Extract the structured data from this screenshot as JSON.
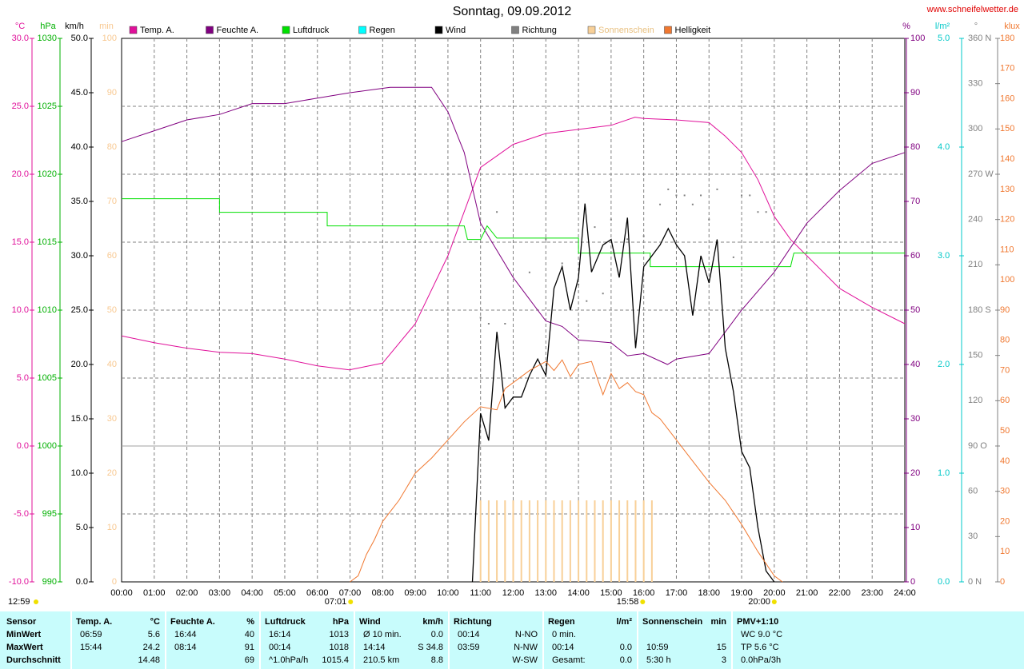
{
  "chart_data": {
    "type": "line",
    "title": "Sonntag, 09.09.2012",
    "source": "www.schneifelwetter.de",
    "grid": true,
    "corner_time": "12:59",
    "xlim": [
      0,
      24
    ],
    "xticks": [
      {
        "value": 0,
        "label": "00:00"
      },
      {
        "value": 1,
        "label": "01:00"
      },
      {
        "value": 2,
        "label": "02:00"
      },
      {
        "value": 3,
        "label": "03:00"
      },
      {
        "value": 4,
        "label": "04:00"
      },
      {
        "value": 5,
        "label": "05:00"
      },
      {
        "value": 6,
        "label": "06:00"
      },
      {
        "value": 7,
        "label": "07:00"
      },
      {
        "value": 8,
        "label": "08:00"
      },
      {
        "value": 9,
        "label": "09:00"
      },
      {
        "value": 10,
        "label": "10:00"
      },
      {
        "value": 11,
        "label": "11:00"
      },
      {
        "value": 12,
        "label": "12:00"
      },
      {
        "value": 13,
        "label": "13:00"
      },
      {
        "value": 14,
        "label": "14:00"
      },
      {
        "value": 15,
        "label": "15:00"
      },
      {
        "value": 16,
        "label": "16:00"
      },
      {
        "value": 17,
        "label": "17:00"
      },
      {
        "value": 18,
        "label": "18:00"
      },
      {
        "value": 19,
        "label": "19:00"
      },
      {
        "value": 20,
        "label": "20:00"
      },
      {
        "value": 21,
        "label": "21:00"
      },
      {
        "value": 22,
        "label": "22:00"
      },
      {
        "value": 23,
        "label": "23:00"
      },
      {
        "value": 24,
        "label": "24:00"
      }
    ],
    "annotations": [
      {
        "text": "07:01",
        "x": 7.017
      },
      {
        "text": "20:00",
        "x": 20.0
      },
      {
        "text": "15:58",
        "x": 15.967
      }
    ],
    "axes": [
      {
        "title": "°C",
        "color": "#e0109a",
        "ylim": [
          -10,
          30
        ],
        "yticks": [
          {
            "value": -10,
            "label": "-10.0"
          },
          {
            "value": -5,
            "label": "-5.0"
          },
          {
            "value": 0,
            "label": "0.0"
          },
          {
            "value": 5,
            "label": "5.0"
          },
          {
            "value": 10,
            "label": "10.0"
          },
          {
            "value": 15,
            "label": "15.0"
          },
          {
            "value": 20,
            "label": "20.0"
          },
          {
            "value": 25,
            "label": "25.0"
          },
          {
            "value": 30,
            "label": "30.0"
          }
        ]
      },
      {
        "title": "hPa",
        "color": "#00b000",
        "ylim": [
          990,
          1030
        ],
        "yticks": [
          990,
          995,
          1000,
          1005,
          1010,
          1015,
          1020,
          1025,
          1030
        ]
      },
      {
        "title": "km/h",
        "color": "#000000",
        "ylim": [
          0,
          50
        ],
        "yticks": [
          {
            "value": 0,
            "label": "0.0"
          },
          {
            "value": 5,
            "label": "5.0"
          },
          {
            "value": 10,
            "label": "10.0"
          },
          {
            "value": 15,
            "label": "15.0"
          },
          {
            "value": 20,
            "label": "20.0"
          },
          {
            "value": 25,
            "label": "25.0"
          },
          {
            "value": 30,
            "label": "30.0"
          },
          {
            "value": 35,
            "label": "35.0"
          },
          {
            "value": 40,
            "label": "40.0"
          },
          {
            "value": 45,
            "label": "45.0"
          },
          {
            "value": 50,
            "label": "50.0"
          }
        ]
      },
      {
        "title": "min",
        "color": "#f8c890",
        "ylim": [
          0,
          100
        ],
        "yticks": [
          0,
          10,
          20,
          30,
          40,
          50,
          60,
          70,
          80,
          90,
          100
        ]
      },
      {
        "title": "%",
        "color": "#800080",
        "ylim": [
          0,
          100
        ],
        "yticks": [
          0,
          10,
          20,
          30,
          40,
          50,
          60,
          70,
          80,
          90,
          100
        ]
      },
      {
        "title": "l/m²",
        "color": "#00c8c8",
        "ylim": [
          0,
          5
        ],
        "yticks": [
          {
            "value": 0,
            "label": "0.0"
          },
          {
            "value": 1,
            "label": "1.0"
          },
          {
            "value": 2,
            "label": "2.0"
          },
          {
            "value": 3,
            "label": "3.0"
          },
          {
            "value": 4,
            "label": "4.0"
          },
          {
            "value": 5,
            "label": "5.0"
          }
        ]
      },
      {
        "title": "°",
        "color": "#808080",
        "ylim": [
          0,
          360
        ],
        "yticks": [
          {
            "value": 0,
            "label": "0 N"
          },
          30,
          60,
          {
            "value": 90,
            "label": "90 O"
          },
          120,
          150,
          {
            "value": 180,
            "label": "180 S"
          },
          210,
          240,
          {
            "value": 270,
            "label": "270 W"
          },
          300,
          330,
          {
            "value": 360,
            "label": "360 N"
          }
        ]
      },
      {
        "title": "klux",
        "color": "#f07830",
        "ylim": [
          0,
          180
        ],
        "yticks": [
          0,
          10,
          20,
          30,
          40,
          50,
          60,
          70,
          80,
          90,
          100,
          110,
          120,
          130,
          140,
          150,
          160,
          170,
          180
        ]
      }
    ],
    "series": [
      {
        "name": "Temp. A.",
        "color": "#e0109a",
        "axis": "°C",
        "type": "line",
        "x": [
          0,
          1,
          2,
          3,
          4,
          5,
          6,
          6.98,
          8,
          9,
          10,
          11,
          12,
          13,
          14,
          15,
          15.73,
          16,
          17,
          18,
          18.5,
          19,
          19.5,
          20,
          20.5,
          21,
          22,
          23,
          24
        ],
        "values": [
          8.1,
          7.6,
          7.2,
          6.9,
          6.8,
          6.4,
          5.9,
          5.6,
          6.1,
          9.0,
          14.0,
          20.5,
          22.2,
          23.0,
          23.3,
          23.6,
          24.2,
          24.1,
          24.0,
          23.8,
          22.8,
          21.6,
          19.6,
          16.9,
          15.2,
          14.0,
          11.6,
          10.2,
          9.0
        ]
      },
      {
        "name": "Feuchte A.",
        "color": "#800080",
        "axis": "%",
        "type": "line",
        "x": [
          0,
          1,
          2,
          3,
          4,
          5,
          6,
          7,
          8.23,
          9.5,
          10,
          10.5,
          11,
          12,
          12.5,
          13,
          13.5,
          14,
          15,
          15.5,
          16,
          16.73,
          17,
          18,
          19,
          20,
          21,
          22,
          23,
          24
        ],
        "values": [
          81,
          83,
          85,
          86,
          88,
          88,
          89,
          90,
          91,
          91,
          86.5,
          79,
          66,
          56,
          52,
          48,
          47,
          44.5,
          44,
          41.6,
          42,
          40,
          41,
          42,
          50,
          57,
          66,
          72,
          77,
          79
        ]
      },
      {
        "name": "Luftdruck",
        "color": "#00e000",
        "axis": "hPa",
        "type": "line",
        "x": [
          0,
          3,
          3,
          6.3,
          6.3,
          10.5,
          10.6,
          11.0,
          11.2,
          11.5,
          14.0,
          14.0,
          16.2,
          16.2,
          20.5,
          20.6,
          24
        ],
        "values": [
          1018.2,
          1018.2,
          1017.2,
          1017.2,
          1016.2,
          1016.2,
          1015.2,
          1015.2,
          1016.2,
          1015.3,
          1015.3,
          1014.2,
          1014.2,
          1013.2,
          1013.2,
          1014.2,
          1014.2
        ]
      },
      {
        "name": "Regen",
        "color": "#00ffff",
        "axis": "l/m²",
        "type": "line",
        "x": [],
        "values": []
      },
      {
        "name": "Wind",
        "color": "#000000",
        "axis": "km/h",
        "type": "line",
        "x": [
          10.75,
          11.0,
          11.25,
          11.5,
          11.75,
          12.0,
          12.25,
          12.5,
          12.75,
          13.0,
          13.25,
          13.5,
          13.75,
          14.0,
          14.2,
          14.4,
          14.75,
          15.0,
          15.25,
          15.5,
          15.75,
          16.0,
          16.5,
          16.75,
          17.0,
          17.25,
          17.5,
          17.75,
          18.0,
          18.25,
          18.5,
          18.75,
          19.0,
          19.25,
          19.5,
          19.75,
          20.0
        ],
        "values": [
          0,
          15.5,
          13,
          23,
          16,
          17,
          17,
          19,
          20.5,
          19,
          27,
          29,
          25,
          28,
          34.8,
          28.5,
          31,
          31.5,
          28,
          33.5,
          21.5,
          29,
          31,
          32.5,
          31,
          30,
          24.5,
          30,
          27.5,
          31.5,
          21.5,
          17.5,
          12,
          10.5,
          5,
          1,
          0
        ]
      },
      {
        "name": "Richtung",
        "color": "#808080",
        "axis": "°",
        "type": "scatter",
        "x": [
          11.0,
          11.25,
          11.5,
          11.75,
          12.5,
          13.0,
          13.5,
          14.0,
          14.25,
          14.5,
          14.75,
          15.0,
          15.5,
          16.0,
          16.5,
          16.75,
          17.0,
          17.25,
          17.5,
          17.75,
          18.0,
          18.25,
          18.75,
          19.0,
          19.25,
          19.5,
          19.75
        ],
        "values": [
          175,
          171,
          245,
          171,
          205,
          227,
          211,
          197,
          186,
          235,
          191,
          240,
          227,
          229,
          250,
          260,
          256,
          256,
          250,
          256,
          240,
          260,
          215,
          256,
          256,
          245,
          245
        ]
      },
      {
        "name": "Sonnenschein",
        "color": "#f8d098",
        "axis": "min",
        "type": "bar",
        "x": [
          11.0,
          11.25,
          11.5,
          11.75,
          12.0,
          12.25,
          12.5,
          12.75,
          13.0,
          13.25,
          13.5,
          13.75,
          14.0,
          14.25,
          14.5,
          14.75,
          15.0,
          15.25,
          15.5,
          15.75,
          16.0,
          16.25
        ],
        "values": [
          15,
          15,
          15,
          15,
          15,
          15,
          15,
          15,
          15,
          15,
          15,
          15,
          15,
          15,
          15,
          15,
          15,
          15,
          15,
          15,
          15,
          15
        ]
      },
      {
        "name": "Helligkeit",
        "color": "#f07830",
        "axis": "klux",
        "type": "line",
        "x": [
          7.0,
          7.25,
          7.5,
          7.75,
          8.0,
          8.5,
          9.0,
          9.5,
          10.0,
          10.5,
          11.0,
          11.5,
          11.75,
          12.0,
          12.5,
          13.0,
          13.25,
          13.5,
          13.75,
          14.0,
          14.4,
          14.75,
          15.0,
          15.25,
          15.5,
          15.75,
          16.0,
          16.25,
          16.5,
          17.0,
          17.5,
          18.0,
          18.5,
          19.0,
          19.5,
          20.0,
          20.25
        ],
        "values": [
          0,
          2,
          9,
          14,
          20,
          27,
          36,
          41,
          47,
          53,
          58,
          57,
          64,
          66,
          70,
          73,
          70,
          73.5,
          68,
          72,
          73,
          62,
          69,
          64,
          66,
          63,
          62,
          56,
          54,
          47,
          40,
          33,
          27,
          19,
          10,
          2,
          0
        ]
      }
    ]
  },
  "table": {
    "first_header": "Sensor",
    "row_labels": [
      "MinWert",
      "MaxWert",
      "Durchschnitt"
    ],
    "groups": [
      {
        "name": "Temp. A.",
        "unit": "°C",
        "rows": [
          {
            "time": "06:59",
            "value": "5.6"
          },
          {
            "time": "15:44",
            "value": "24.2"
          },
          {
            "value": "14.48"
          }
        ]
      },
      {
        "name": "Feuchte A.",
        "unit": "%",
        "rows": [
          {
            "time": "16:44",
            "value": "40"
          },
          {
            "time": "08:14",
            "value": "91"
          },
          {
            "value": "69"
          }
        ]
      },
      {
        "name": "Luftdruck",
        "unit": "hPa",
        "rows": [
          {
            "time": "16:14",
            "value": "1013"
          },
          {
            "time": "00:14",
            "value": "1018"
          },
          {
            "time": "^1.0hPa/h",
            "value": "1015.4"
          }
        ]
      },
      {
        "name": "Wind",
        "unit": "km/h",
        "rows": [
          {
            "time": "Ø 10 min.",
            "value": "0.0"
          },
          {
            "time": "14:14",
            "value": "S 34.8"
          },
          {
            "time": "210.5 km",
            "value": "8.8"
          }
        ]
      },
      {
        "name": "Richtung",
        "rows": [
          {
            "time": "00:14",
            "value": "N-NO"
          },
          {
            "time": "03:59",
            "value": "N-NW"
          },
          {
            "value": "W-SW"
          }
        ]
      },
      {
        "name": "Regen",
        "unit": "l/m²",
        "rows": [
          {
            "time": "0 min."
          },
          {
            "time": "00:14",
            "value": "0.0"
          },
          {
            "time": "Gesamt:",
            "value": "0.0"
          }
        ]
      },
      {
        "name": "Sonnenschein",
        "unit": "min",
        "rows": [
          null,
          {
            "time": "10:59",
            "value": "15"
          },
          {
            "time": "5:30 h",
            "value": "3"
          }
        ]
      },
      {
        "name": "PMV+1:10",
        "rows": [
          {
            "time": "WC 9.0 °C"
          },
          {
            "time": "TP 5.6 °C"
          },
          {
            "time": "0.0hPa/3h"
          }
        ]
      }
    ]
  }
}
